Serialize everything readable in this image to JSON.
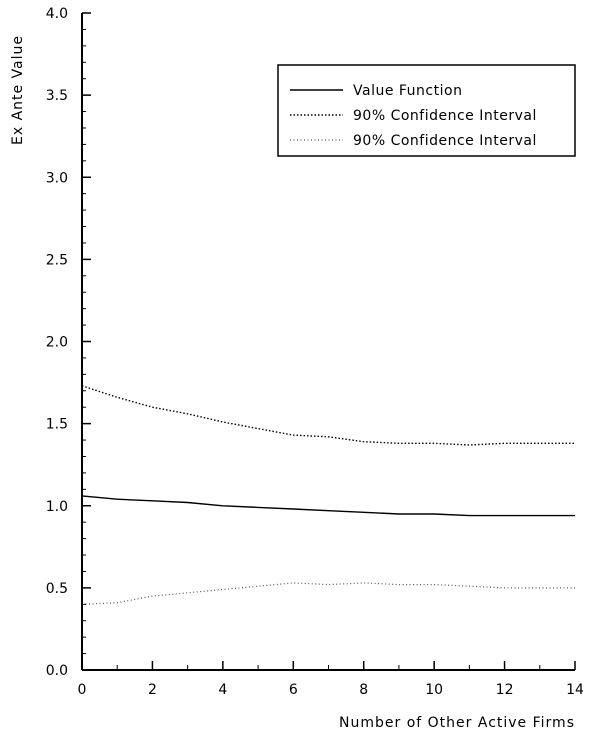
{
  "chart_data": {
    "type": "line",
    "xlabel": "Number of Other Active Firms",
    "ylabel": "Ex Ante Value",
    "xlim": [
      0,
      14
    ],
    "ylim": [
      0.0,
      4.0
    ],
    "x_ticks": [
      0,
      2,
      4,
      6,
      8,
      10,
      12,
      14
    ],
    "x_tick_labels": [
      "0",
      "2",
      "4",
      "6",
      "8",
      "10",
      "12",
      "14"
    ],
    "y_ticks": [
      0.0,
      0.5,
      1.0,
      1.5,
      2.0,
      2.5,
      3.0,
      3.5,
      4.0
    ],
    "y_tick_labels": [
      "0.0",
      "0.5",
      "1.0",
      "1.5",
      "2.0",
      "2.5",
      "3.0",
      "3.5",
      "4.0"
    ],
    "grid": false,
    "legend_position": "top-right",
    "x": [
      0,
      1,
      2,
      3,
      4,
      5,
      6,
      7,
      8,
      9,
      10,
      11,
      12,
      13,
      14
    ],
    "series": [
      {
        "name": "Value Function",
        "style": "solid",
        "color": "#000000",
        "values": [
          1.06,
          1.04,
          1.03,
          1.02,
          1.0,
          0.99,
          0.98,
          0.97,
          0.96,
          0.95,
          0.95,
          0.94,
          0.94,
          0.94,
          0.94
        ]
      },
      {
        "name": "90% Confidence Interval",
        "style": "dotted",
        "color": "#000000",
        "values": [
          1.73,
          1.66,
          1.6,
          1.56,
          1.51,
          1.47,
          1.43,
          1.42,
          1.39,
          1.38,
          1.38,
          1.37,
          1.38,
          1.38,
          1.38
        ]
      },
      {
        "name": "90% Confidence Interval",
        "style": "dotted-light",
        "color": "#555555",
        "values": [
          0.4,
          0.41,
          0.45,
          0.47,
          0.49,
          0.51,
          0.53,
          0.52,
          0.53,
          0.52,
          0.52,
          0.51,
          0.5,
          0.5,
          0.5
        ]
      }
    ]
  }
}
